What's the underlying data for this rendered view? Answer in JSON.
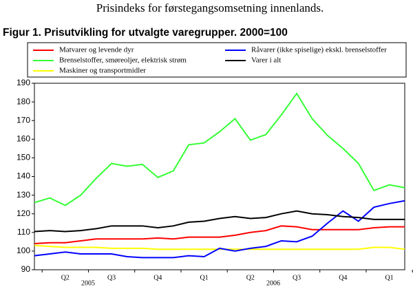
{
  "chart_data": {
    "type": "line",
    "heading": "Prisindeks for førstegangsomsetning innenlands.",
    "title": "Figur 1. Prisutvikling for utvalgte varegrupper. 2000=100",
    "categories": [
      null,
      null,
      "Q2",
      null,
      null,
      "Q3",
      null,
      null,
      "Q4",
      null,
      null,
      "Q1",
      null,
      null,
      "Q2",
      null,
      null,
      "Q3",
      null,
      null,
      "Q4",
      null,
      null,
      "Q1",
      null
    ],
    "year_labels": [
      "2005",
      "2006"
    ],
    "ylim": [
      90,
      190
    ],
    "yticks": [
      90,
      100,
      110,
      120,
      130,
      140,
      150,
      160,
      170,
      180,
      190
    ],
    "series": [
      {
        "name": "Matvarer og levende dyr",
        "color": "#ff0000",
        "values": [
          104,
          104.5,
          104.5,
          105.5,
          106.5,
          106.5,
          106.5,
          106.5,
          107,
          106.5,
          107.5,
          107.5,
          107.5,
          108.5,
          110,
          111,
          113.5,
          113,
          111.5,
          111.5,
          111.5,
          111.5,
          112.5,
          113,
          113
        ]
      },
      {
        "name": "Brenselstoffer, smøreoljer, elektrisk strøm",
        "color": "#33ff33",
        "values": [
          126,
          128.5,
          124.5,
          130,
          139,
          147,
          145.5,
          146.5,
          139.5,
          143,
          157,
          158,
          164,
          171,
          159.5,
          162.5,
          173,
          184.5,
          171,
          162,
          155,
          147,
          132.5,
          135.5,
          134
        ]
      },
      {
        "name": "Maskiner og transportmidler",
        "color": "#ffff00",
        "values": [
          103,
          102.5,
          102,
          102,
          102,
          101.5,
          101.5,
          101.5,
          101,
          101,
          101,
          101,
          101,
          101,
          101,
          101,
          101,
          101,
          101,
          101,
          101,
          101,
          102,
          102,
          101
        ]
      },
      {
        "name": "Råvarer (ikke spiselige) ekskl. brenselstoffer",
        "color": "#0000ff",
        "values": [
          97.5,
          98.5,
          99.5,
          98.5,
          98.5,
          98.5,
          97,
          96.5,
          96.5,
          96.5,
          97.5,
          97,
          101.5,
          100,
          101.5,
          102.5,
          105.5,
          105,
          108,
          115,
          121.5,
          116,
          123.5,
          125.5,
          127
        ]
      },
      {
        "name": "Varer i alt",
        "color": "#000000",
        "values": [
          110.5,
          111,
          110.5,
          111,
          112,
          113.5,
          113.5,
          113.5,
          112.5,
          113.5,
          115.5,
          116,
          117.5,
          118.5,
          117.5,
          118,
          120,
          121.5,
          120,
          119.5,
          118.5,
          118,
          117,
          117,
          117
        ]
      }
    ]
  }
}
